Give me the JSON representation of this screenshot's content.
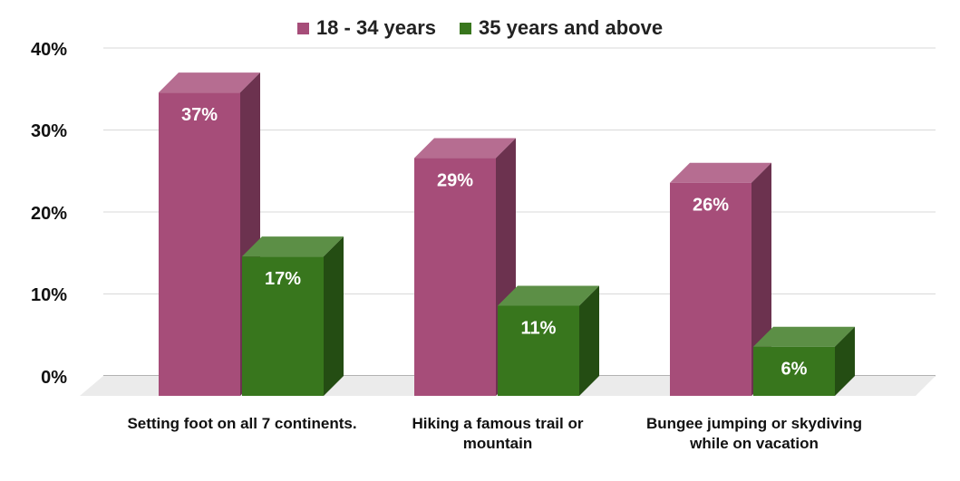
{
  "chart_data": {
    "type": "bar",
    "categories": [
      "Setting foot on all 7 continents.",
      "Hiking a famous trail or mountain",
      "Bungee jumping or skydiving while on vacation"
    ],
    "series": [
      {
        "name": "18 - 34 years",
        "values": [
          37,
          29,
          26
        ],
        "color": "#a64d79",
        "labels": [
          "37%",
          "29%",
          "26%"
        ]
      },
      {
        "name": "35 years and above",
        "values": [
          17,
          11,
          6
        ],
        "color": "#38761d",
        "labels": [
          "17%",
          "11%",
          "6%"
        ]
      }
    ],
    "yticks": [
      "40%",
      "30%",
      "20%",
      "10%",
      "0%"
    ],
    "ylim": [
      0,
      40
    ],
    "grid": true,
    "legend_position": "top-center",
    "style": "3d-columns"
  }
}
